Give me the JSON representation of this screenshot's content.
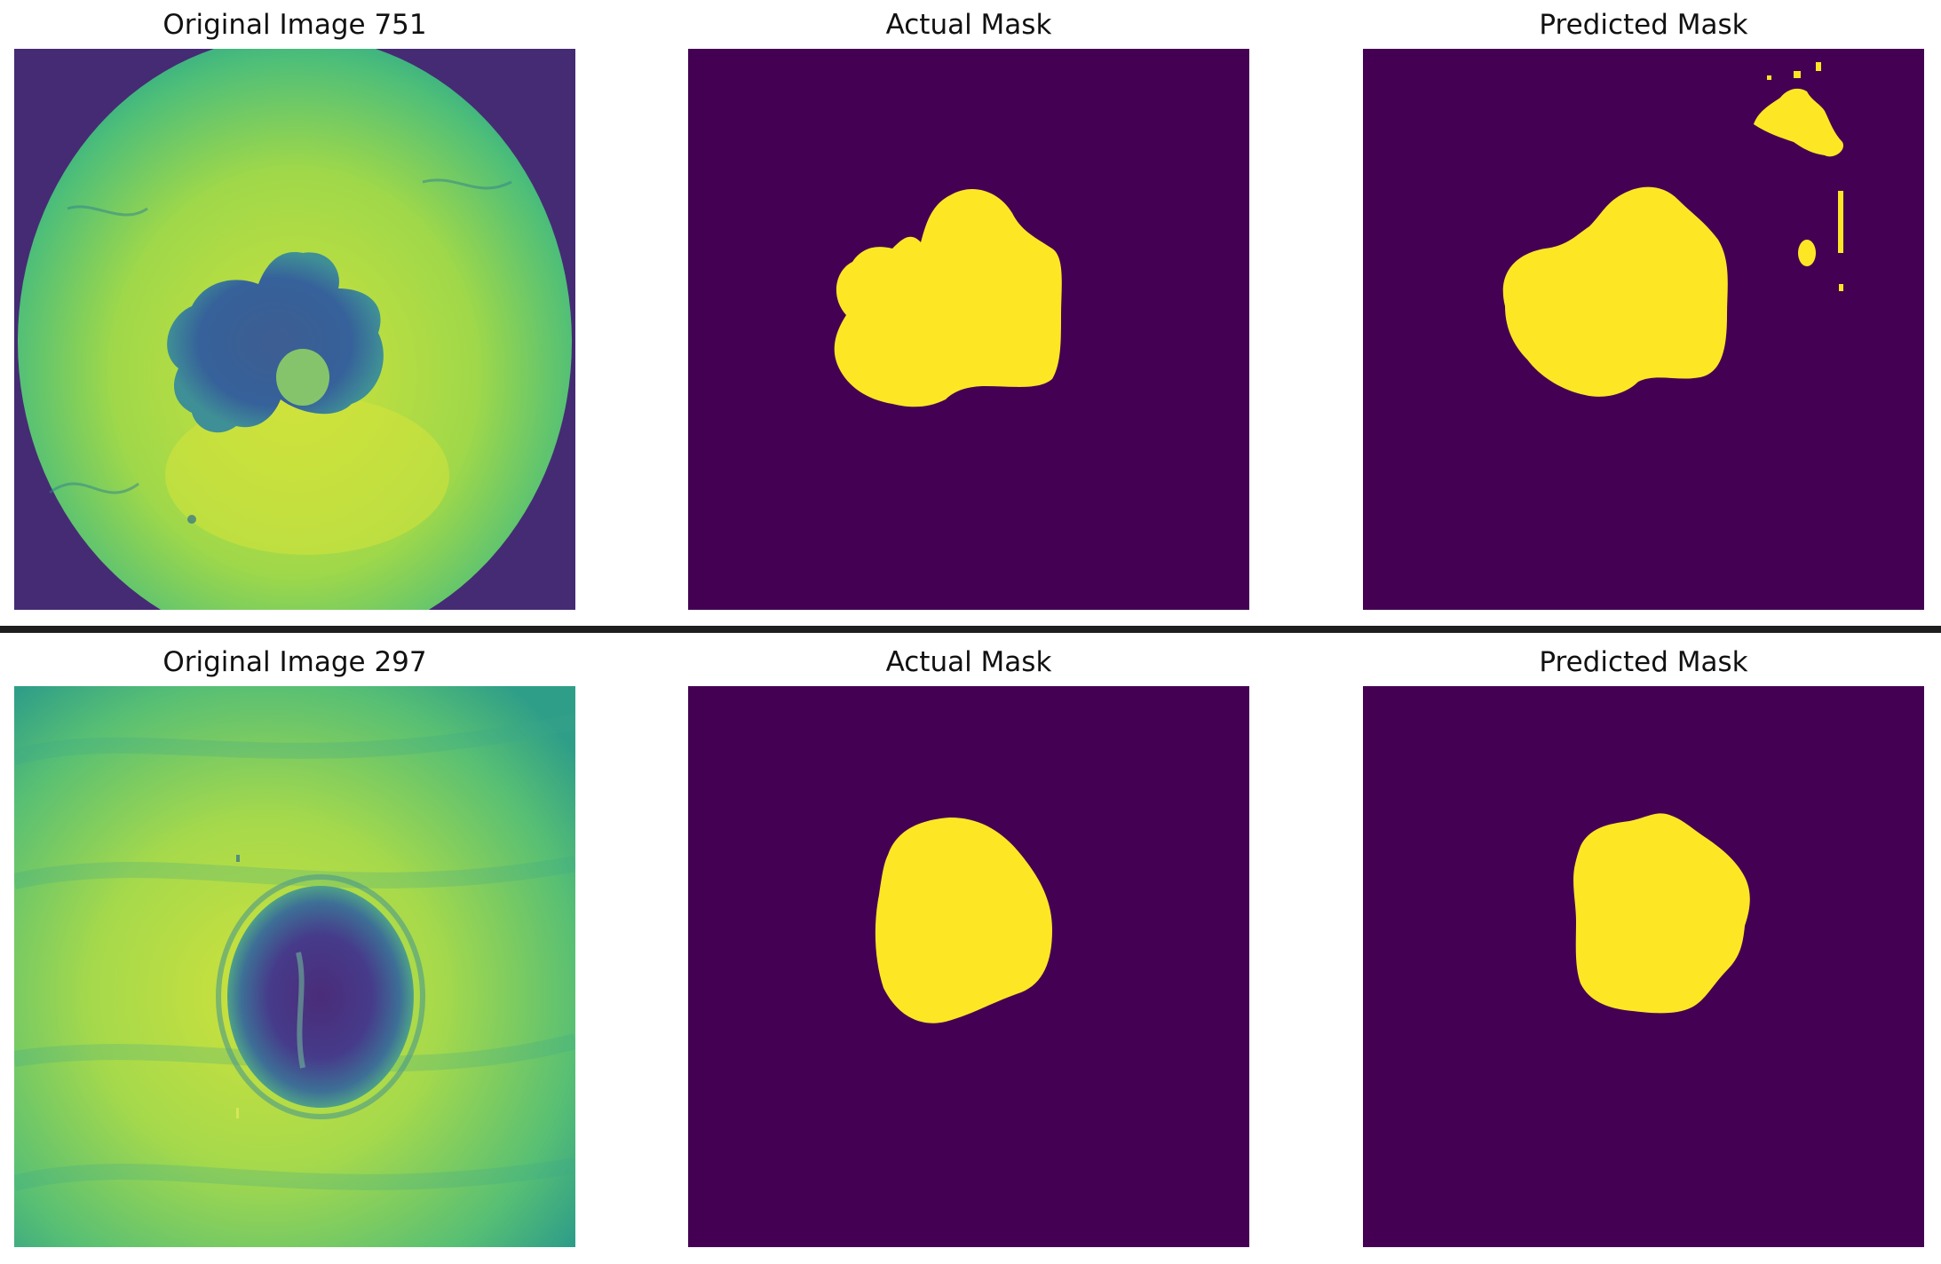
{
  "colors": {
    "mask_background": "#440154",
    "mask_foreground": "#fde725",
    "skin_light": "#d3e42e",
    "skin_mid": "#7fcf5c",
    "skin_teal": "#2a9d8c",
    "lesion_dark": "#3b4f8c",
    "vignette": "#452b74"
  },
  "rows": [
    {
      "original_title": "Original Image 751",
      "actual_title": "Actual Mask",
      "predicted_title": "Predicted Mask"
    },
    {
      "original_title": "Original Image 297",
      "actual_title": "Actual Mask",
      "predicted_title": "Predicted Mask"
    }
  ]
}
